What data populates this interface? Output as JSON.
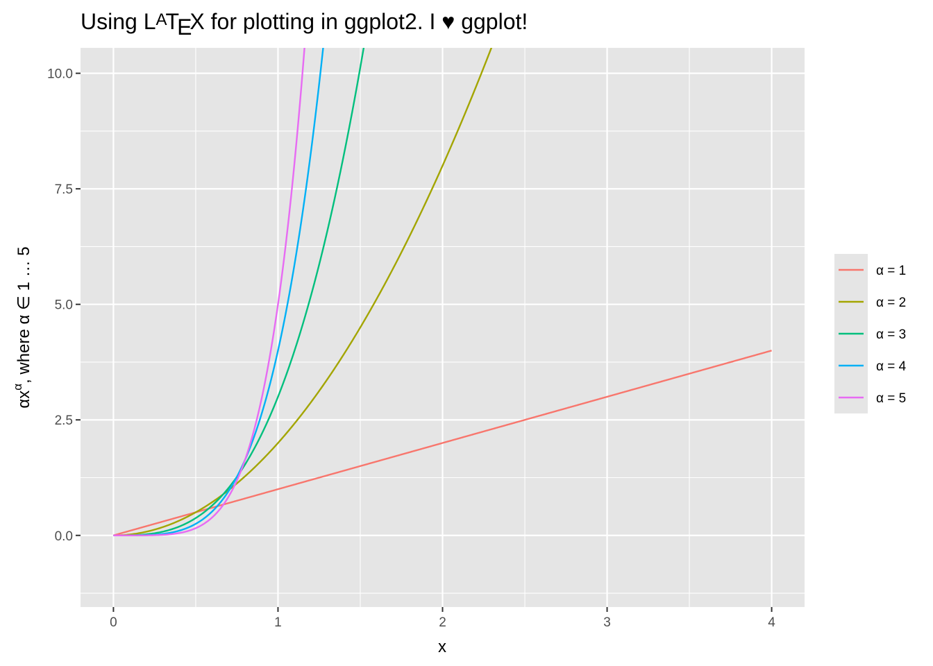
{
  "chart_data": {
    "type": "line",
    "title": {
      "prefix": "Using L",
      "latex_a": "A",
      "latex_t": "T",
      "latex_e": "E",
      "latex_x": "X",
      "suffix": " for plotting in ggplot2. I ♥ ggplot!"
    },
    "xlabel": "x",
    "ylabel": {
      "base": "αx",
      "superscript": "α",
      "rest": ", where α ∈ 1 … 5"
    },
    "xlim": [
      -0.2,
      4.2
    ],
    "ylim": [
      -1.55,
      10.55
    ],
    "x_ticks": [
      0,
      1,
      2,
      3,
      4
    ],
    "x_tick_labels": [
      "0",
      "1",
      "2",
      "3",
      "4"
    ],
    "x_minor_ticks": [
      0.5,
      1.5,
      2.5,
      3.5
    ],
    "y_ticks": [
      0,
      2.5,
      5,
      7.5,
      10
    ],
    "y_tick_labels": [
      "0.0",
      "2.5",
      "5.0",
      "7.5",
      "10.0"
    ],
    "y_minor_ticks": [
      -1.25,
      1.25,
      3.75,
      6.25,
      8.75
    ],
    "x_domain": [
      0,
      4
    ],
    "grid": true,
    "legend_placement": "right",
    "series": [
      {
        "name": "α = 1",
        "alpha": 1,
        "color": "#F8766D"
      },
      {
        "name": "α = 2",
        "alpha": 2,
        "color": "#A3A500"
      },
      {
        "name": "α = 3",
        "alpha": 3,
        "color": "#00BF7D"
      },
      {
        "name": "α = 4",
        "alpha": 4,
        "color": "#00B0F6"
      },
      {
        "name": "α = 5",
        "alpha": 5,
        "color": "#E76BF3"
      }
    ],
    "colors": {
      "panel_background": "#E5E5E5",
      "grid": "#FFFFFF",
      "tick_label": "#4D4D4D",
      "tick_mark": "#333333"
    }
  }
}
